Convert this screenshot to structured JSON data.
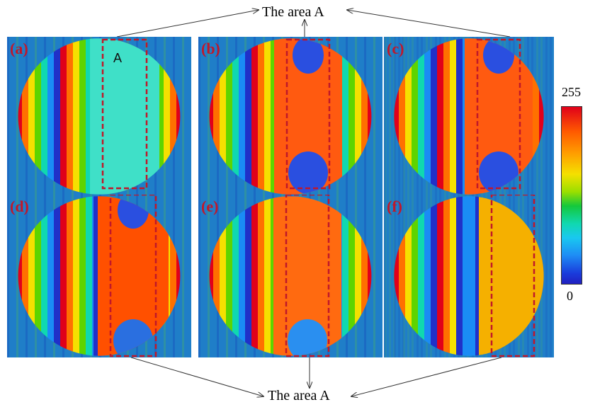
{
  "captions": {
    "top": "The area A",
    "bottom": "The area A"
  },
  "colorbar": {
    "max_label": "255",
    "min_label": "0"
  },
  "panels": [
    {
      "label": "(a)",
      "region_label": "A"
    },
    {
      "label": "(b)"
    },
    {
      "label": "(c)"
    },
    {
      "label": "(d)"
    },
    {
      "label": "(e)"
    },
    {
      "label": "(f)"
    }
  ],
  "colors": {
    "panel_label": "#c0182a",
    "roi_box": "#c0182a",
    "background": "#8a8a8a"
  }
}
